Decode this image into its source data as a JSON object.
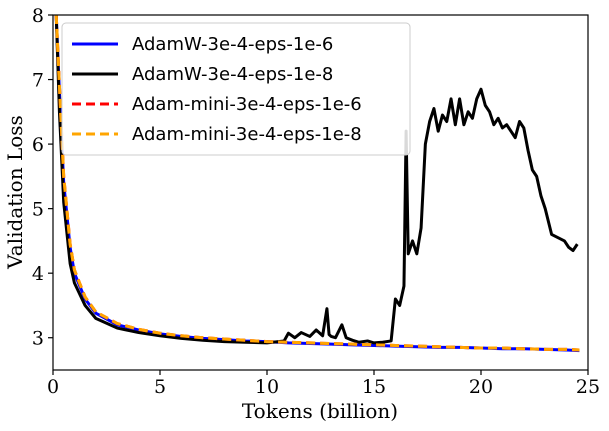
{
  "chart_data": {
    "type": "line",
    "xlabel": "Tokens (billion)",
    "ylabel": "Validation Loss",
    "xlim": [
      0,
      25
    ],
    "ylim": [
      2.5,
      8
    ],
    "xticks": [
      0,
      5,
      10,
      15,
      20,
      25
    ],
    "yticks": [
      3,
      4,
      5,
      6,
      7,
      8
    ],
    "grid": false,
    "legend_position": "top-left",
    "series": [
      {
        "name": "AdamW-3e-4-eps-1e-6",
        "color": "#0000ff",
        "style": "solid",
        "x": [
          0.15,
          0.3,
          0.5,
          0.8,
          1.0,
          1.5,
          2.0,
          3.0,
          4.0,
          5.0,
          6.0,
          7.0,
          8.0,
          9.0,
          10.0,
          11.0,
          12.0,
          13.0,
          14.0,
          15.0,
          16.0,
          17.0,
          18.0,
          19.0,
          20.0,
          21.0,
          22.0,
          23.0,
          24.0,
          24.6
        ],
        "y": [
          8.0,
          6.8,
          5.4,
          4.4,
          4.0,
          3.6,
          3.38,
          3.2,
          3.12,
          3.06,
          3.02,
          2.99,
          2.97,
          2.95,
          2.94,
          2.92,
          2.91,
          2.9,
          2.89,
          2.88,
          2.87,
          2.86,
          2.85,
          2.85,
          2.84,
          2.83,
          2.83,
          2.82,
          2.81,
          2.8
        ]
      },
      {
        "name": "AdamW-3e-4-eps-1e-8",
        "color": "#000000",
        "style": "solid",
        "x": [
          0.15,
          0.3,
          0.5,
          0.8,
          1.0,
          1.5,
          2.0,
          3.0,
          4.0,
          5.0,
          6.0,
          7.0,
          8.0,
          9.0,
          10.0,
          10.8,
          11.0,
          11.3,
          11.6,
          12.0,
          12.3,
          12.6,
          12.8,
          12.9,
          13.0,
          13.2,
          13.5,
          13.7,
          14.0,
          14.3,
          14.7,
          15.0,
          15.4,
          15.8,
          16.0,
          16.2,
          16.4,
          16.5,
          16.6,
          16.8,
          17.0,
          17.2,
          17.4,
          17.6,
          17.8,
          18.0,
          18.2,
          18.4,
          18.6,
          18.8,
          19.0,
          19.2,
          19.4,
          19.6,
          19.8,
          20.0,
          20.2,
          20.4,
          20.6,
          20.8,
          21.0,
          21.2,
          21.4,
          21.6,
          21.8,
          22.0,
          22.2,
          22.4,
          22.6,
          22.8,
          23.0,
          23.3,
          23.6,
          23.9,
          24.1,
          24.3,
          24.5
        ],
        "y": [
          8.0,
          6.5,
          5.1,
          4.15,
          3.85,
          3.5,
          3.3,
          3.15,
          3.08,
          3.03,
          2.99,
          2.96,
          2.94,
          2.93,
          2.92,
          2.95,
          3.07,
          3.0,
          3.08,
          3.02,
          3.12,
          3.03,
          3.45,
          3.05,
          3.02,
          3.0,
          3.2,
          3.0,
          2.96,
          2.93,
          2.95,
          2.92,
          2.93,
          2.95,
          3.6,
          3.5,
          3.8,
          6.2,
          4.3,
          4.5,
          4.3,
          4.7,
          6.0,
          6.35,
          6.55,
          6.2,
          6.45,
          6.35,
          6.7,
          6.3,
          6.7,
          6.3,
          6.5,
          6.4,
          6.7,
          6.85,
          6.6,
          6.5,
          6.3,
          6.4,
          6.25,
          6.3,
          6.2,
          6.1,
          6.35,
          6.25,
          5.9,
          5.6,
          5.5,
          5.2,
          5.0,
          4.6,
          4.55,
          4.5,
          4.4,
          4.35,
          4.45
        ]
      },
      {
        "name": "Adam-mini-3e-4-eps-1e-6",
        "color": "#ff0000",
        "style": "dashed",
        "x": [
          0.15,
          0.3,
          0.5,
          0.8,
          1.0,
          1.5,
          2.0,
          3.0,
          4.0,
          5.0,
          6.0,
          7.0,
          8.0,
          9.0,
          10.0,
          11.0,
          12.0,
          13.0,
          14.0,
          15.0,
          16.0,
          17.0,
          18.0,
          19.0,
          20.0,
          21.0,
          22.0,
          23.0,
          24.0,
          24.6
        ],
        "y": [
          8.0,
          6.9,
          5.5,
          4.45,
          4.05,
          3.63,
          3.4,
          3.22,
          3.13,
          3.07,
          3.03,
          3.0,
          2.98,
          2.96,
          2.94,
          2.93,
          2.92,
          2.91,
          2.9,
          2.89,
          2.88,
          2.87,
          2.86,
          2.85,
          2.84,
          2.84,
          2.83,
          2.82,
          2.82,
          2.81
        ]
      },
      {
        "name": "Adam-mini-3e-4-eps-1e-8",
        "color": "#ffa500",
        "style": "dashed",
        "x": [
          0.15,
          0.3,
          0.5,
          0.8,
          1.0,
          1.5,
          2.0,
          3.0,
          4.0,
          5.0,
          6.0,
          7.0,
          8.0,
          9.0,
          10.0,
          11.0,
          12.0,
          13.0,
          14.0,
          15.0,
          16.0,
          17.0,
          18.0,
          19.0,
          20.0,
          21.0,
          22.0,
          23.0,
          24.0,
          24.6
        ],
        "y": [
          8.0,
          6.9,
          5.5,
          4.45,
          4.05,
          3.63,
          3.4,
          3.22,
          3.13,
          3.07,
          3.03,
          3.0,
          2.98,
          2.96,
          2.94,
          2.93,
          2.92,
          2.91,
          2.9,
          2.89,
          2.88,
          2.87,
          2.86,
          2.85,
          2.84,
          2.84,
          2.83,
          2.82,
          2.82,
          2.81
        ]
      }
    ]
  }
}
